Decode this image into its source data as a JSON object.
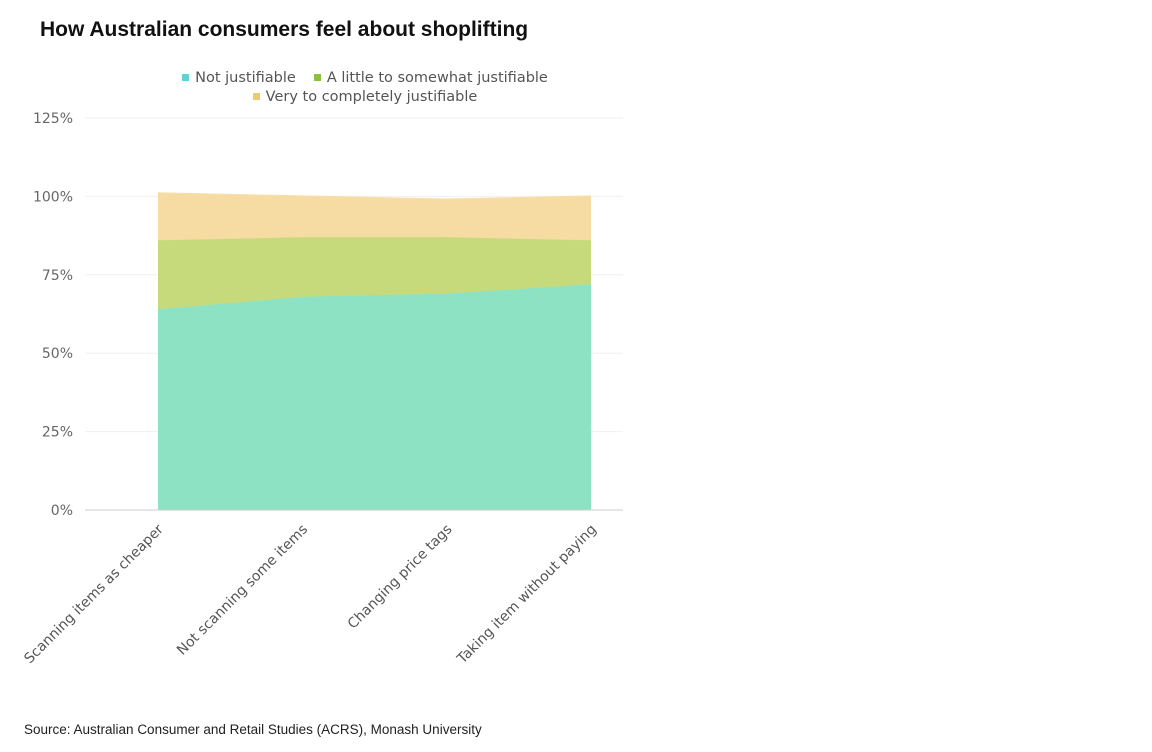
{
  "chart_data": {
    "type": "area",
    "stacked": true,
    "title": "How Australian consumers feel about shoplifting",
    "categories": [
      "Scanning items as cheaper",
      "Not scanning some items",
      "Changing price tags",
      "Taking item without paying"
    ],
    "series": [
      {
        "name": "Not justifiable",
        "values": [
          64,
          68,
          69,
          72
        ],
        "color": "#8ee2c4"
      },
      {
        "name": "A little to somewhat justifiable",
        "values": [
          22,
          19,
          18,
          14
        ],
        "color": "#c6da7c"
      },
      {
        "name": "Very to completely justifiable",
        "values": [
          15,
          13,
          12,
          14
        ],
        "color": "#f6dca3"
      }
    ],
    "legend_colors": [
      "#5fd3cf",
      "#8fbf3f",
      "#f0c96a"
    ],
    "yticks": [
      "0%",
      "25%",
      "50%",
      "75%",
      "100%",
      "125%"
    ],
    "ylim": [
      0,
      125
    ],
    "xlabel": "",
    "ylabel": "",
    "legend_position": "top",
    "grid": true
  },
  "source": "Source: Australian Consumer and Retail Studies (ACRS), Monash University"
}
